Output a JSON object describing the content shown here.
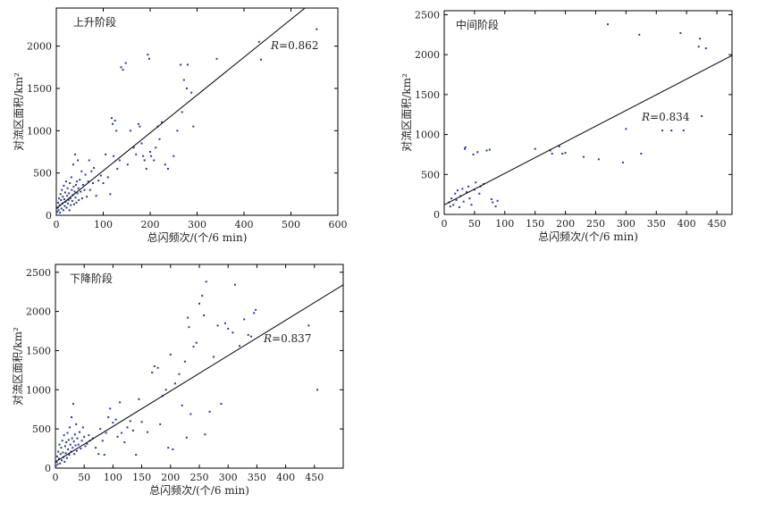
{
  "colors": {
    "points": "#2b3a8f",
    "frame": "#000000",
    "fit_line": "#000000"
  },
  "chart_data": [
    {
      "type": "scatter",
      "panel_label": "上升阶段",
      "xlabel": "总闪频次/(个/6 min)",
      "ylabel": "对流区面积/km²",
      "xlim": [
        0,
        600
      ],
      "ylim": [
        0,
        2450
      ],
      "x_ticks": [
        "0",
        "100",
        "200",
        "300",
        "400",
        "500",
        "600"
      ],
      "y_ticks": [
        "0",
        "500",
        "1000",
        "1500",
        "2000"
      ],
      "x_tick_values": [
        0,
        100,
        200,
        300,
        400,
        500,
        600
      ],
      "y_tick_values": [
        0,
        500,
        1000,
        1500,
        2000
      ],
      "r_prefix": "R",
      "r_value": "=0.862",
      "fit_line": [
        [
          0,
          80
        ],
        [
          530,
          2450
        ]
      ],
      "points": [
        [
          2,
          40
        ],
        [
          3,
          90
        ],
        [
          4,
          150
        ],
        [
          5,
          60
        ],
        [
          6,
          200
        ],
        [
          7,
          120
        ],
        [
          8,
          30
        ],
        [
          9,
          250
        ],
        [
          10,
          180
        ],
        [
          11,
          80
        ],
        [
          12,
          300
        ],
        [
          13,
          140
        ],
        [
          14,
          220
        ],
        [
          15,
          60
        ],
        [
          16,
          350
        ],
        [
          17,
          190
        ],
        [
          18,
          110
        ],
        [
          19,
          270
        ],
        [
          20,
          160
        ],
        [
          21,
          400
        ],
        [
          22,
          90
        ],
        [
          23,
          230
        ],
        [
          24,
          320
        ],
        [
          25,
          140
        ],
        [
          26,
          180
        ],
        [
          27,
          260
        ],
        [
          28,
          60
        ],
        [
          29,
          380
        ],
        [
          30,
          200
        ],
        [
          31,
          120
        ],
        [
          32,
          450
        ],
        [
          33,
          300
        ],
        [
          34,
          170
        ],
        [
          35,
          240
        ],
        [
          36,
          600
        ],
        [
          37,
          340
        ],
        [
          38,
          130
        ],
        [
          39,
          280
        ],
        [
          40,
          720
        ],
        [
          41,
          210
        ],
        [
          42,
          360
        ],
        [
          43,
          150
        ],
        [
          44,
          400
        ],
        [
          45,
          260
        ],
        [
          46,
          650
        ],
        [
          47,
          320
        ],
        [
          48,
          180
        ],
        [
          50,
          420
        ],
        [
          52,
          280
        ],
        [
          54,
          520
        ],
        [
          55,
          200
        ],
        [
          57,
          360
        ],
        [
          60,
          300
        ],
        [
          62,
          480
        ],
        [
          65,
          220
        ],
        [
          68,
          400
        ],
        [
          70,
          650
        ],
        [
          72,
          300
        ],
        [
          75,
          520
        ],
        [
          78,
          380
        ],
        [
          80,
          560
        ],
        [
          85,
          230
        ],
        [
          90,
          410
        ],
        [
          95,
          470
        ],
        [
          100,
          380
        ],
        [
          105,
          720
        ],
        [
          110,
          450
        ],
        [
          115,
          250
        ],
        [
          118,
          1150
        ],
        [
          120,
          1080
        ],
        [
          122,
          700
        ],
        [
          125,
          1120
        ],
        [
          128,
          1000
        ],
        [
          130,
          550
        ],
        [
          135,
          650
        ],
        [
          138,
          1750
        ],
        [
          142,
          1720
        ],
        [
          148,
          1800
        ],
        [
          152,
          600
        ],
        [
          158,
          1000
        ],
        [
          165,
          800
        ],
        [
          170,
          720
        ],
        [
          175,
          1080
        ],
        [
          178,
          1050
        ],
        [
          182,
          850
        ],
        [
          185,
          700
        ],
        [
          188,
          650
        ],
        [
          192,
          550
        ],
        [
          195,
          1900
        ],
        [
          198,
          1850
        ],
        [
          200,
          750
        ],
        [
          202,
          700
        ],
        [
          208,
          650
        ],
        [
          212,
          800
        ],
        [
          216,
          1050
        ],
        [
          220,
          900
        ],
        [
          225,
          1100
        ],
        [
          232,
          600
        ],
        [
          238,
          550
        ],
        [
          250,
          700
        ],
        [
          258,
          1000
        ],
        [
          265,
          1780
        ],
        [
          268,
          1220
        ],
        [
          272,
          1600
        ],
        [
          278,
          1500
        ],
        [
          280,
          1780
        ],
        [
          288,
          1450
        ],
        [
          292,
          1050
        ],
        [
          342,
          1850
        ],
        [
          432,
          2050
        ],
        [
          436,
          1840
        ],
        [
          555,
          2200
        ]
      ]
    },
    {
      "type": "scatter",
      "panel_label": "中间阶段",
      "xlabel": "总闪频次/(个/6 min)",
      "ylabel": "对流区面积/km²",
      "xlim": [
        0,
        475
      ],
      "ylim": [
        0,
        2550
      ],
      "x_ticks": [
        "0",
        "50",
        "100",
        "150",
        "200",
        "250",
        "300",
        "350",
        "400",
        "450"
      ],
      "y_ticks": [
        "0",
        "500",
        "1000",
        "1500",
        "2000",
        "2500"
      ],
      "x_tick_values": [
        0,
        50,
        100,
        150,
        200,
        250,
        300,
        350,
        400,
        450
      ],
      "y_tick_values": [
        0,
        500,
        1000,
        1500,
        2000,
        2500
      ],
      "r_prefix": "R",
      "r_value": "=0.834",
      "fit_line": [
        [
          0,
          120
        ],
        [
          475,
          1990
        ]
      ],
      "points": [
        [
          8,
          150
        ],
        [
          10,
          100
        ],
        [
          12,
          200
        ],
        [
          15,
          120
        ],
        [
          18,
          260
        ],
        [
          20,
          180
        ],
        [
          22,
          300
        ],
        [
          25,
          90
        ],
        [
          27,
          230
        ],
        [
          30,
          320
        ],
        [
          32,
          160
        ],
        [
          34,
          820
        ],
        [
          35,
          840
        ],
        [
          37,
          280
        ],
        [
          40,
          350
        ],
        [
          42,
          200
        ],
        [
          45,
          120
        ],
        [
          48,
          750
        ],
        [
          50,
          310
        ],
        [
          52,
          400
        ],
        [
          55,
          780
        ],
        [
          58,
          260
        ],
        [
          60,
          350
        ],
        [
          65,
          380
        ],
        [
          70,
          800
        ],
        [
          75,
          810
        ],
        [
          78,
          190
        ],
        [
          80,
          150
        ],
        [
          85,
          100
        ],
        [
          88,
          170
        ],
        [
          150,
          820
        ],
        [
          175,
          800
        ],
        [
          178,
          760
        ],
        [
          190,
          850
        ],
        [
          195,
          760
        ],
        [
          200,
          770
        ],
        [
          230,
          720
        ],
        [
          255,
          690
        ],
        [
          270,
          2380
        ],
        [
          295,
          650
        ],
        [
          300,
          1070
        ],
        [
          322,
          2250
        ],
        [
          325,
          760
        ],
        [
          360,
          1050
        ],
        [
          375,
          1050
        ],
        [
          390,
          2270
        ],
        [
          395,
          1050
        ],
        [
          420,
          2100
        ],
        [
          422,
          2200
        ],
        [
          425,
          1230
        ],
        [
          432,
          2080
        ]
      ]
    },
    {
      "type": "scatter",
      "panel_label": "下降阶段",
      "xlabel": "总闪频次/(个/6 min)",
      "ylabel": "对流区面积/km²",
      "xlim": [
        0,
        500
      ],
      "ylim": [
        0,
        2600
      ],
      "x_ticks": [
        "0",
        "50",
        "100",
        "150",
        "200",
        "250",
        "300",
        "350",
        "400",
        "450"
      ],
      "y_ticks": [
        "0",
        "500",
        "1000",
        "1500",
        "2000",
        "2500"
      ],
      "x_tick_values": [
        0,
        50,
        100,
        150,
        200,
        250,
        300,
        350,
        400,
        450
      ],
      "y_tick_values": [
        0,
        500,
        1000,
        1500,
        2000,
        2500
      ],
      "r_prefix": "R",
      "r_value": "=0.837",
      "fit_line": [
        [
          0,
          80
        ],
        [
          500,
          2340
        ]
      ],
      "points": [
        [
          1,
          30
        ],
        [
          2,
          80
        ],
        [
          3,
          150
        ],
        [
          4,
          50
        ],
        [
          5,
          210
        ],
        [
          6,
          120
        ],
        [
          7,
          300
        ],
        [
          8,
          60
        ],
        [
          9,
          180
        ],
        [
          10,
          260
        ],
        [
          11,
          100
        ],
        [
          12,
          350
        ],
        [
          13,
          200
        ],
        [
          14,
          140
        ],
        [
          15,
          420
        ],
        [
          16,
          80
        ],
        [
          17,
          280
        ],
        [
          18,
          190
        ],
        [
          19,
          330
        ],
        [
          20,
          130
        ],
        [
          21,
          450
        ],
        [
          22,
          240
        ],
        [
          23,
          360
        ],
        [
          24,
          170
        ],
        [
          25,
          520
        ],
        [
          26,
          300
        ],
        [
          27,
          210
        ],
        [
          28,
          650
        ],
        [
          29,
          380
        ],
        [
          30,
          260
        ],
        [
          31,
          820
        ],
        [
          32,
          340
        ],
        [
          33,
          180
        ],
        [
          34,
          430
        ],
        [
          35,
          290
        ],
        [
          36,
          560
        ],
        [
          37,
          220
        ],
        [
          38,
          380
        ],
        [
          40,
          300
        ],
        [
          42,
          460
        ],
        [
          44,
          250
        ],
        [
          46,
          350
        ],
        [
          48,
          520
        ],
        [
          50,
          400
        ],
        [
          52,
          280
        ],
        [
          55,
          310
        ],
        [
          58,
          420
        ],
        [
          60,
          350
        ],
        [
          65,
          380
        ],
        [
          70,
          260
        ],
        [
          75,
          180
        ],
        [
          78,
          500
        ],
        [
          82,
          350
        ],
        [
          85,
          170
        ],
        [
          88,
          450
        ],
        [
          92,
          650
        ],
        [
          95,
          760
        ],
        [
          100,
          580
        ],
        [
          105,
          620
        ],
        [
          108,
          400
        ],
        [
          112,
          840
        ],
        [
          115,
          450
        ],
        [
          120,
          330
        ],
        [
          125,
          520
        ],
        [
          130,
          600
        ],
        [
          135,
          480
        ],
        [
          140,
          170
        ],
        [
          145,
          880
        ],
        [
          150,
          590
        ],
        [
          160,
          460
        ],
        [
          168,
          1220
        ],
        [
          172,
          1300
        ],
        [
          178,
          1280
        ],
        [
          182,
          560
        ],
        [
          186,
          920
        ],
        [
          192,
          1000
        ],
        [
          196,
          260
        ],
        [
          200,
          1450
        ],
        [
          204,
          240
        ],
        [
          208,
          1080
        ],
        [
          215,
          1200
        ],
        [
          220,
          800
        ],
        [
          225,
          1360
        ],
        [
          228,
          390
        ],
        [
          230,
          1920
        ],
        [
          232,
          1800
        ],
        [
          235,
          690
        ],
        [
          240,
          1550
        ],
        [
          245,
          1600
        ],
        [
          250,
          2100
        ],
        [
          255,
          2200
        ],
        [
          258,
          1950
        ],
        [
          260,
          430
        ],
        [
          262,
          2380
        ],
        [
          268,
          720
        ],
        [
          275,
          1420
        ],
        [
          282,
          1820
        ],
        [
          288,
          820
        ],
        [
          295,
          1850
        ],
        [
          300,
          1780
        ],
        [
          308,
          1730
        ],
        [
          312,
          2340
        ],
        [
          320,
          1560
        ],
        [
          328,
          1900
        ],
        [
          335,
          1700
        ],
        [
          340,
          1680
        ],
        [
          345,
          1980
        ],
        [
          348,
          2020
        ],
        [
          440,
          1820
        ],
        [
          455,
          1000
        ]
      ]
    }
  ]
}
